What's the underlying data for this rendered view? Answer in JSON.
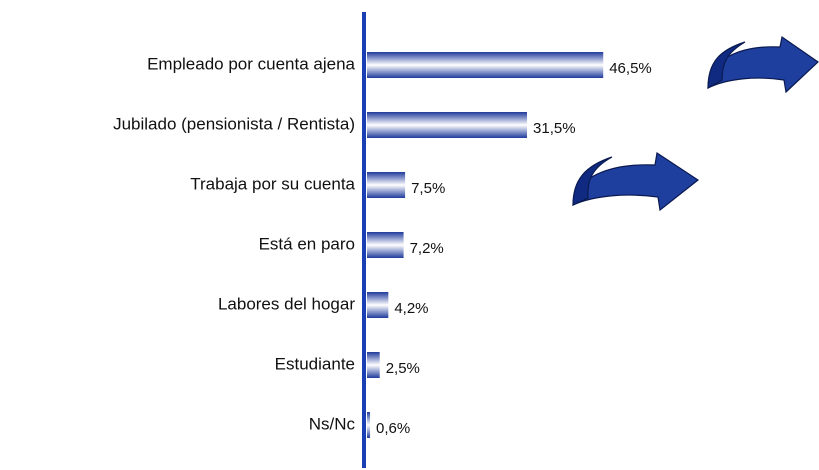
{
  "chart_data": {
    "type": "bar",
    "orientation": "horizontal",
    "categories": [
      "Empleado por cuenta ajena",
      "Jubilado (pensionista / Rentista)",
      "Trabaja por su cuenta",
      "Está en paro",
      "Labores del hogar",
      "Estudiante",
      "Ns/Nc"
    ],
    "values": [
      46.5,
      31.5,
      7.5,
      7.2,
      4.2,
      2.5,
      0.6
    ],
    "value_labels": [
      "46,5%",
      "31,5%",
      "7,5%",
      "7,2%",
      "4,2%",
      "2,5%",
      "0,6%"
    ],
    "color": "#1f3a9c"
  }
}
